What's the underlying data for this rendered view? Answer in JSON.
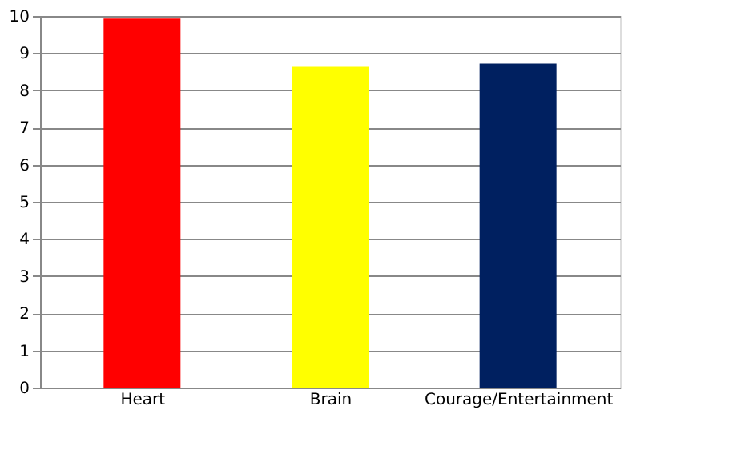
{
  "chart_data": {
    "type": "bar",
    "categories": [
      "Heart",
      "Brain",
      "Courage/Entertainment"
    ],
    "values": [
      9.93,
      8.63,
      8.72
    ],
    "colors": [
      "#ff0000",
      "#ffff00",
      "#002060"
    ],
    "ylim": [
      0,
      10
    ],
    "yticks": [
      0,
      1,
      2,
      3,
      4,
      5,
      6,
      7,
      8,
      9,
      10
    ],
    "grid": "y"
  }
}
